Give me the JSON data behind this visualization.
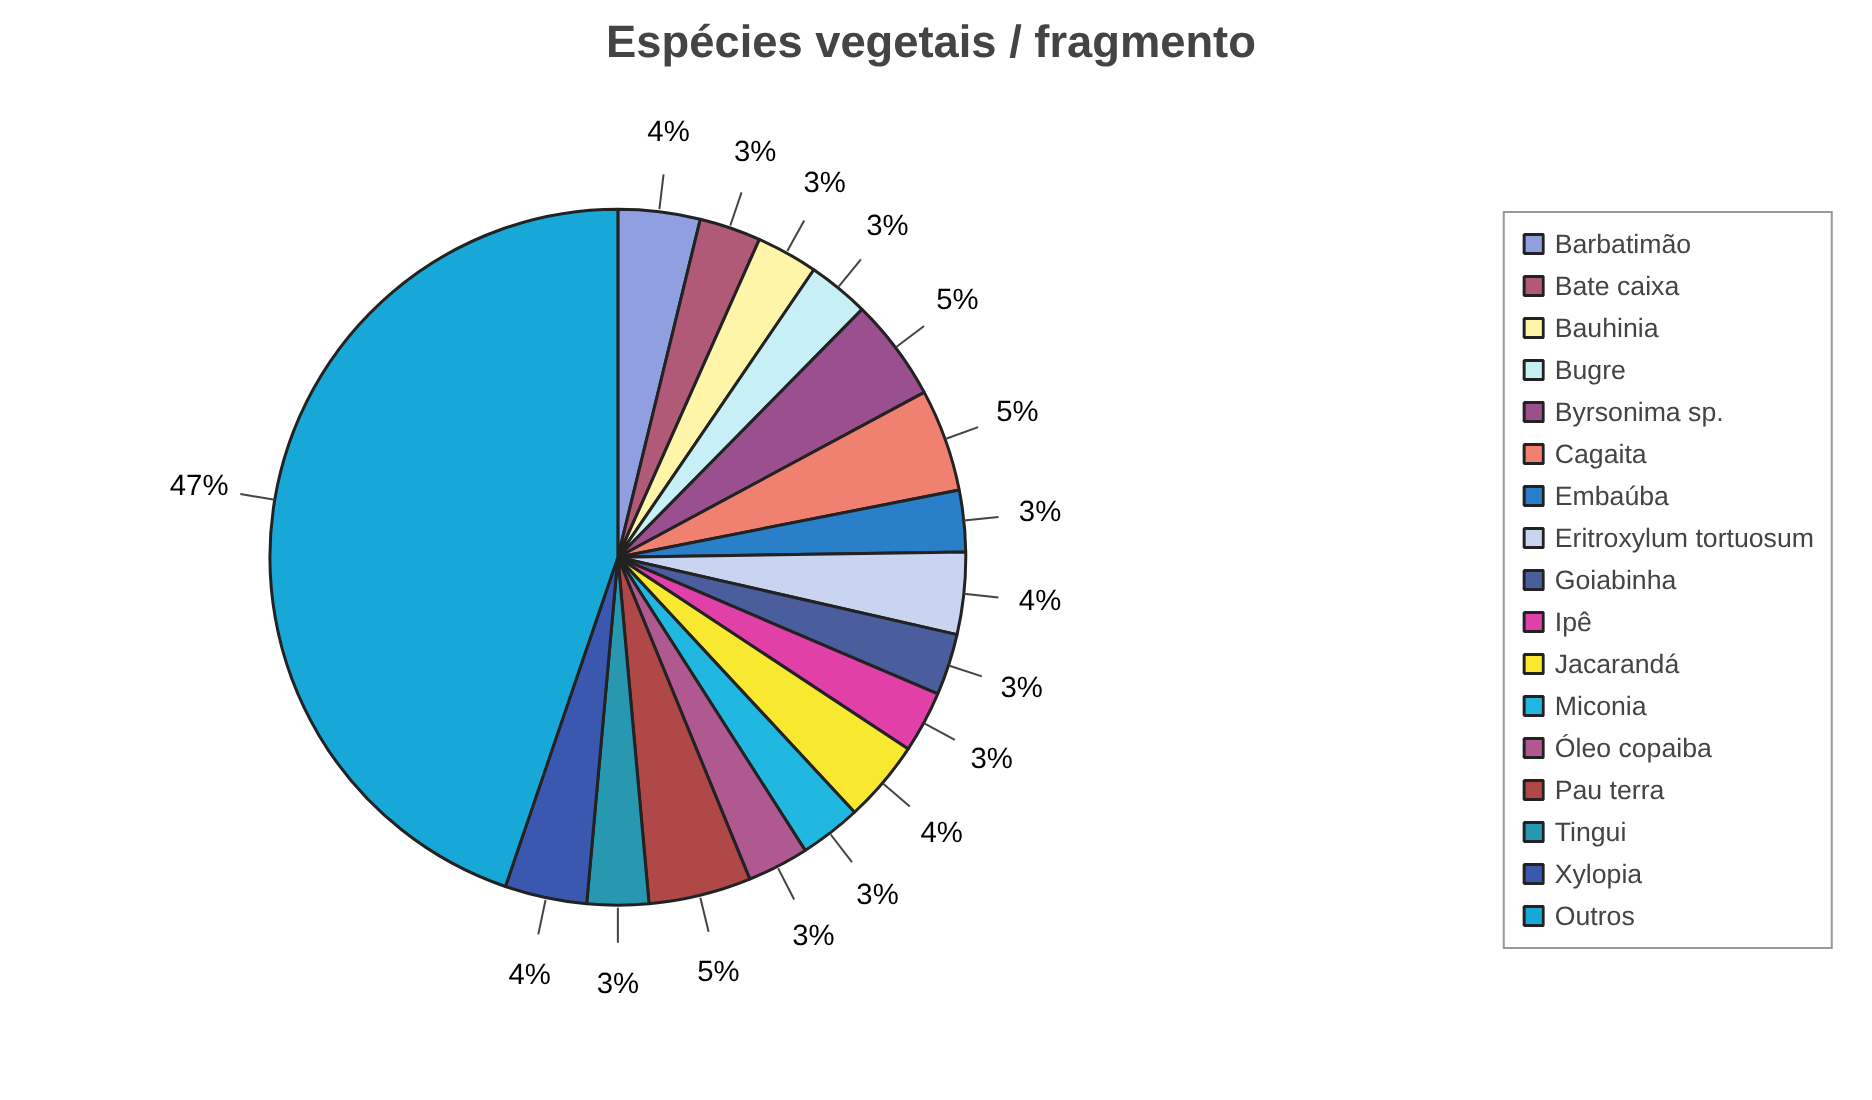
{
  "chart_data": {
    "type": "pie",
    "title": "Espécies vegetais / fragmento",
    "categories": [
      "Barbatimão",
      "Bate caixa",
      "Bauhinia",
      "Bugre",
      "Byrsonima sp.",
      "Cagaita",
      "Embaúba",
      "Eritroxylum tortuosum",
      "Goiabinha",
      "Ipê",
      "Jacarandá",
      "Miconia",
      "Óleo copaiba",
      "Pau terra",
      "Tingui",
      "Xylopia",
      "Outros"
    ],
    "values": [
      4,
      3,
      3,
      3,
      5,
      5,
      3,
      4,
      3,
      3,
      4,
      3,
      3,
      5,
      3,
      4,
      47
    ],
    "value_labels": [
      "4%",
      "3%",
      "3%",
      "3%",
      "5%",
      "5%",
      "3%",
      "4%",
      "3%",
      "3%",
      "4%",
      "3%",
      "3%",
      "5%",
      "3%",
      "4%",
      "47%"
    ],
    "colors": [
      "#8f9fe0",
      "#b05a78",
      "#fff5a8",
      "#c6f0f5",
      "#9a4f8e",
      "#f08070",
      "#2a80c8",
      "#c8d4f0",
      "#4a5e9e",
      "#e040a8",
      "#f8e830",
      "#20b8e0",
      "#b05890",
      "#b04848",
      "#2898b0",
      "#3a58b0",
      "#18a8d8"
    ],
    "legend": "right"
  }
}
